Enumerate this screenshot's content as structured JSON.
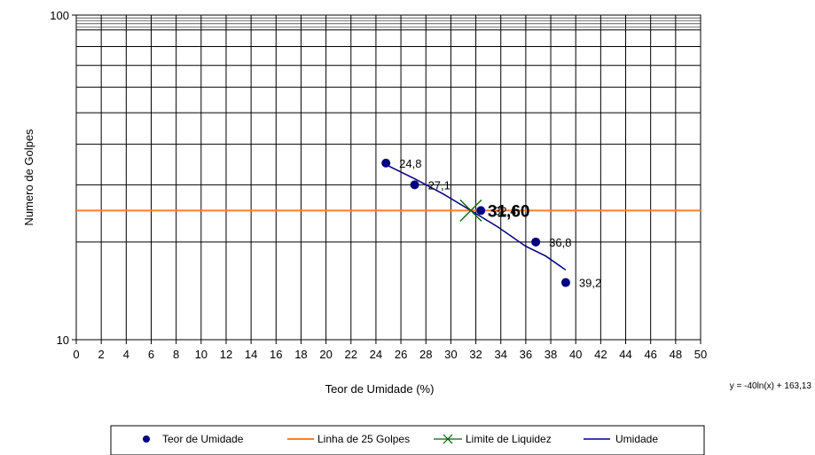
{
  "chart_data": {
    "type": "scatter",
    "xlabel": "Teor de Umidade  (%)",
    "ylabel": "Numero de Golpes",
    "xlim": [
      0,
      50
    ],
    "x_major": 2,
    "ylim": [
      10,
      100
    ],
    "y_scale": "log",
    "y_tick_labels": [
      "10",
      "100"
    ],
    "grid": true,
    "series": [
      {
        "name": "Teor de Umidade",
        "kind": "marker-circle",
        "color": "#000080",
        "points": [
          {
            "x": 24.8,
            "y": 35,
            "label": "24,8"
          },
          {
            "x": 27.1,
            "y": 30,
            "label": "27,1"
          },
          {
            "x": 32.4,
            "y": 25,
            "label": "32,4"
          },
          {
            "x": 36.8,
            "y": 20,
            "label": "36,8"
          },
          {
            "x": 39.2,
            "y": 15,
            "label": "39,2"
          }
        ]
      },
      {
        "name": "Linha de 25 Golpes",
        "kind": "hline",
        "color": "#ff7f27",
        "y": 25
      },
      {
        "name": "Limite de Liquidez",
        "kind": "marker-x",
        "color": "#006400",
        "x": 31.6,
        "y": 25,
        "label": "31,60"
      },
      {
        "name": "Umidade",
        "kind": "line",
        "color": "#000080",
        "x": [
          24.8,
          27.1,
          29.4,
          31.6,
          33.8,
          36.0,
          37.6,
          39.2
        ],
        "y": [
          34.6,
          31.3,
          28.1,
          25.0,
          22.2,
          19.4,
          18.1,
          16.4
        ]
      }
    ],
    "equation": "y = -40ln(x) + 163,13",
    "legend_position": "bottom"
  }
}
